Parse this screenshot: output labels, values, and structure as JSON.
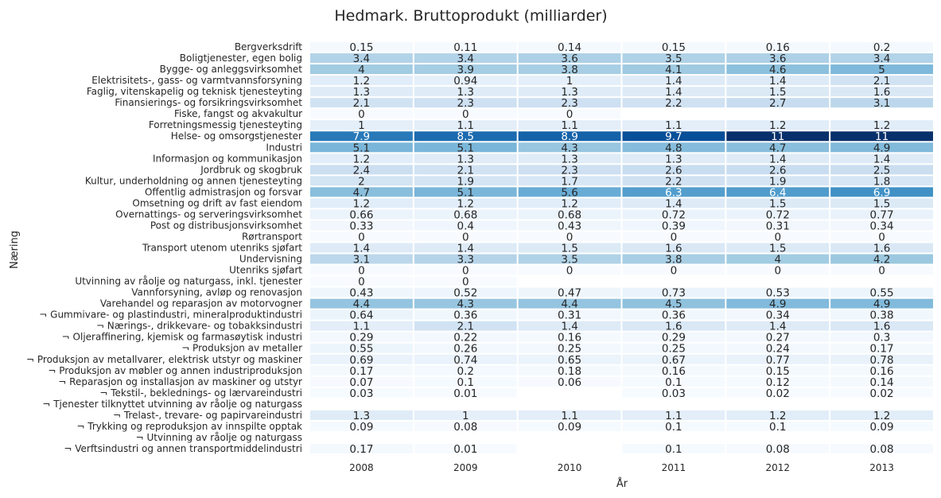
{
  "chart_data": {
    "type": "heatmap",
    "title": "Hedmark. Bruttoprodukt (milliarder)",
    "xlabel": "År",
    "ylabel": "Næring",
    "colormap": "Blues",
    "value_range": [
      0,
      11
    ],
    "columns": [
      "2008",
      "2009",
      "2010",
      "2011",
      "2012",
      "2013"
    ],
    "rows": [
      "Bergverksdrift",
      "Boligtjenester, egen bolig",
      "Bygge- og anleggsvirksomhet",
      "Elektrisitets-, gass- og varmtvannsforsyning",
      "Faglig, vitenskapelig og teknisk tjenesteyting",
      "Finansierings- og forsikringsvirksomhet",
      "Fiske, fangst og akvakultur",
      "Forretningsmessig tjenesteyting",
      "Helse- og omsorgstjenester",
      "Industri",
      "Informasjon og kommunikasjon",
      "Jordbruk og skogbruk",
      "Kultur, underholdning og annen tjenesteyting",
      "Offentlig admistrasjon og forsvar",
      "Omsetning og drift av fast eiendom",
      "Overnattings- og serveringsvirksomhet",
      "Post og distribusjonsvirksomhet",
      "Rørtransport",
      "Transport utenom utenriks sjøfart",
      "Undervisning",
      "Utenriks sjøfart",
      "Utvinning av råolje og naturgass, inkl. tjenester",
      "Vannforsyning, avløp og renovasjon",
      "Varehandel og reparasjon av motorvogner",
      "¬ Gummivare- og plastindustri, mineralproduktindustri",
      "¬ Nærings-, drikkevare- og tobakksindustri",
      "¬ Oljeraffinering, kjemisk og farmasøytisk industri",
      "¬ Produksjon av metaller",
      "¬ Produksjon av metallvarer, elektrisk utstyr og maskiner",
      "¬ Produksjon av møbler og annen industriproduksjon",
      "¬ Reparasjon og installasjon av maskiner og utstyr",
      "¬ Tekstil-, beklednings- og lærvareindustri",
      "¬ Tjenester tilknyttet utvinning av råolje og naturgass",
      "¬ Trelast-, trevare- og papirvareindustri",
      "¬ Trykking og reproduksjon av innspilte opptak",
      "¬ Utvinning av råolje og naturgass",
      "¬ Verftsindustri og annen transportmiddelindustri"
    ],
    "values": [
      [
        "0.15",
        "0.11",
        "0.14",
        "0.15",
        "0.16",
        "0.2"
      ],
      [
        "3.4",
        "3.4",
        "3.6",
        "3.5",
        "3.6",
        "3.4"
      ],
      [
        "4",
        "3.9",
        "3.8",
        "4.1",
        "4.6",
        "5"
      ],
      [
        "1.2",
        "0.94",
        "1",
        "1.4",
        "1.4",
        "2.1"
      ],
      [
        "1.3",
        "1.3",
        "1.3",
        "1.4",
        "1.5",
        "1.6"
      ],
      [
        "2.1",
        "2.3",
        "2.3",
        "2.2",
        "2.7",
        "3.1"
      ],
      [
        "0",
        "0",
        "0",
        null,
        null,
        null
      ],
      [
        "1",
        "1.1",
        "1.1",
        "1.1",
        "1.2",
        "1.2"
      ],
      [
        "7.9",
        "8.5",
        "8.9",
        "9.7",
        "11",
        "11"
      ],
      [
        "5.1",
        "5.1",
        "4.3",
        "4.8",
        "4.7",
        "4.9"
      ],
      [
        "1.2",
        "1.3",
        "1.3",
        "1.3",
        "1.4",
        "1.4"
      ],
      [
        "2.4",
        "2.1",
        "2.3",
        "2.6",
        "2.6",
        "2.5"
      ],
      [
        "2",
        "1.9",
        "1.7",
        "2.2",
        "1.9",
        "1.8"
      ],
      [
        "4.7",
        "5.1",
        "5.6",
        "6.3",
        "6.4",
        "6.9"
      ],
      [
        "1.2",
        "1.2",
        "1.2",
        "1.4",
        "1.5",
        "1.5"
      ],
      [
        "0.66",
        "0.68",
        "0.68",
        "0.72",
        "0.72",
        "0.77"
      ],
      [
        "0.33",
        "0.4",
        "0.43",
        "0.39",
        "0.31",
        "0.34"
      ],
      [
        "0",
        "0",
        "0",
        "0",
        "0",
        "0"
      ],
      [
        "1.4",
        "1.4",
        "1.5",
        "1.6",
        "1.5",
        "1.6"
      ],
      [
        "3.1",
        "3.3",
        "3.5",
        "3.8",
        "4",
        "4.2"
      ],
      [
        "0",
        "0",
        "0",
        "0",
        "0",
        "0"
      ],
      [
        "0",
        "0",
        null,
        null,
        null,
        null
      ],
      [
        "0.43",
        "0.52",
        "0.47",
        "0.73",
        "0.53",
        "0.55"
      ],
      [
        "4.4",
        "4.3",
        "4.4",
        "4.5",
        "4.9",
        "4.9"
      ],
      [
        "0.64",
        "0.36",
        "0.31",
        "0.36",
        "0.34",
        "0.38"
      ],
      [
        "1.1",
        "2.1",
        "1.4",
        "1.6",
        "1.4",
        "1.6"
      ],
      [
        "0.29",
        "0.22",
        "0.16",
        "0.29",
        "0.27",
        "0.3"
      ],
      [
        "0.55",
        "0.26",
        "0.25",
        "0.25",
        "0.24",
        "0.17"
      ],
      [
        "0.69",
        "0.74",
        "0.65",
        "0.67",
        "0.77",
        "0.78"
      ],
      [
        "0.17",
        "0.2",
        "0.18",
        "0.16",
        "0.15",
        "0.16"
      ],
      [
        "0.07",
        "0.1",
        "0.06",
        "0.1",
        "0.12",
        "0.14"
      ],
      [
        "0.03",
        "0.01",
        null,
        "0.03",
        "0.02",
        "0.02"
      ],
      [
        null,
        null,
        null,
        null,
        null,
        null
      ],
      [
        "1.3",
        "1",
        "1.1",
        "1.1",
        "1.2",
        "1.2"
      ],
      [
        "0.09",
        "0.08",
        "0.09",
        "0.1",
        "0.1",
        "0.09"
      ],
      [
        null,
        null,
        null,
        null,
        null,
        null
      ],
      [
        "0.17",
        "0.01",
        null,
        "0.1",
        "0.08",
        "0.08"
      ]
    ]
  }
}
